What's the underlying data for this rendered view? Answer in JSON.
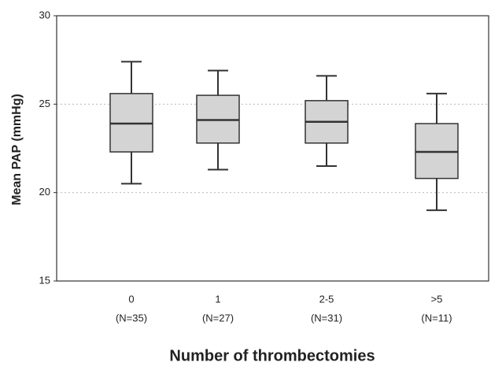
{
  "chart_data": {
    "type": "box",
    "y_label": "Mean PAP (mmHg)",
    "x_label": "Number of thrombectomies",
    "categories": [
      "0",
      "1",
      "2-5",
      ">5"
    ],
    "group_sizes": [
      "(N=35)",
      "(N=27)",
      "(N=31)",
      "(N=11)"
    ],
    "whisker_high": [
      27.4,
      26.9,
      26.6,
      25.6
    ],
    "q3": [
      25.6,
      25.5,
      25.2,
      23.9
    ],
    "median": [
      23.9,
      24.1,
      24.0,
      22.3
    ],
    "q1": [
      22.3,
      22.8,
      22.8,
      20.8
    ],
    "whisker_low": [
      20.5,
      21.3,
      21.5,
      19.0
    ],
    "color": "#d4d4d4",
    "ylim": [
      15,
      30
    ],
    "yticks": [
      15,
      20,
      25,
      30
    ],
    "grid": true
  }
}
